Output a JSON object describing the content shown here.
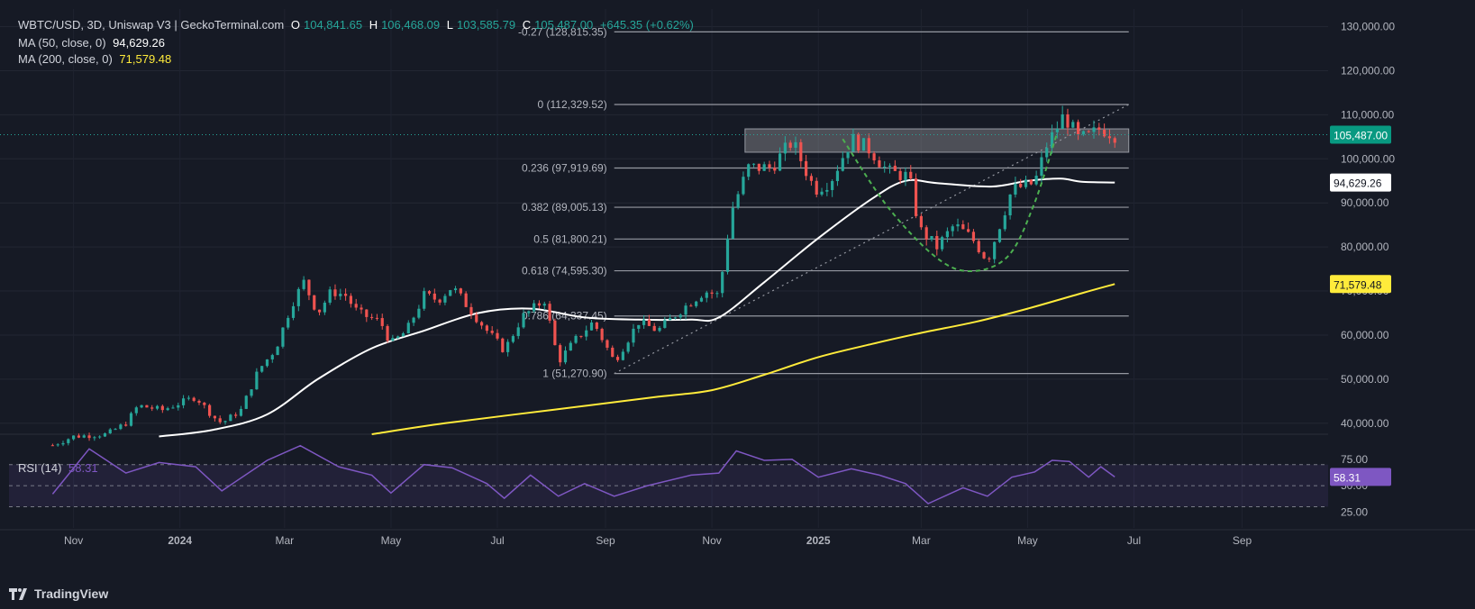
{
  "header": {
    "symbol": "WBTC/USD, 3D, Uniswap V3 | GeckoTerminal.com",
    "open_label": "O",
    "open": "104,841.65",
    "high_label": "H",
    "high": "106,468.09",
    "low_label": "L",
    "low": "103,585.79",
    "close_label": "C",
    "close": "105,487.00",
    "change": "+645.35 (+0.62%)",
    "ma50_label": "MA (50, close, 0)",
    "ma50_value": "94,629.26",
    "ma200_label": "MA (200, close, 0)",
    "ma200_value": "71,579.48",
    "rsi_label": "RSI (14)",
    "rsi_value": "58.31"
  },
  "footer": {
    "brand": "TradingView"
  },
  "colors": {
    "background": "#161a25",
    "up": "#26a69a",
    "down": "#ef5350",
    "ma50": "#ffffff",
    "ma200": "#ffeb3b",
    "rsi": "#7e57c2",
    "cup": "#4caf50"
  },
  "chart_data": {
    "type": "line",
    "y_axis": {
      "ticks": [
        "130,000.00",
        "120,000.00",
        "110,000.00",
        "100,000.00",
        "90,000.00",
        "80,000.00",
        "70,000.00",
        "60,000.00",
        "50,000.00",
        "40,000.00"
      ],
      "ylim": [
        37500,
        134000
      ]
    },
    "x_axis": {
      "ticks": [
        "Nov",
        "2024",
        "Mar",
        "May",
        "Jul",
        "Sep",
        "Nov",
        "2025",
        "Mar",
        "May",
        "Jul",
        "Sep"
      ]
    },
    "price_labels": {
      "last": "105,487.00",
      "ma50": "94,629.26",
      "ma200": "71,579.48",
      "rsi": "58.31"
    },
    "fibonacci": [
      {
        "label": "-0.27 (128,815.35)",
        "value": 128815.35
      },
      {
        "label": "0 (112,329.52)",
        "value": 112329.52
      },
      {
        "label": "0.236 (97,919.69)",
        "value": 97919.69
      },
      {
        "label": "0.382 (89,005.13)",
        "value": 89005.13
      },
      {
        "label": "0.5 (81,800.21)",
        "value": 81800.21
      },
      {
        "label": "0.618 (74,595.30)",
        "value": 74595.3
      },
      {
        "label": "0.786 (64,337.45)",
        "value": 64337.45
      },
      {
        "label": "1 (51,270.90)",
        "value": 51270.9
      }
    ],
    "resistance_zone": {
      "low": 101500,
      "high": 106800
    },
    "series": [
      {
        "name": "WBTC/USD",
        "points": [
          [
            "2023-10-20",
            35000
          ],
          [
            "2023-11-01",
            37000
          ],
          [
            "2023-11-20",
            37500
          ],
          [
            "2023-12-01",
            40000
          ],
          [
            "2023-12-08",
            44000
          ],
          [
            "2023-12-22",
            43000
          ],
          [
            "2024-01-10",
            46000
          ],
          [
            "2024-01-20",
            41500
          ],
          [
            "2024-01-25",
            40000
          ],
          [
            "2024-02-05",
            43000
          ],
          [
            "2024-02-15",
            52000
          ],
          [
            "2024-02-25",
            57000
          ],
          [
            "2024-03-05",
            67000
          ],
          [
            "2024-03-12",
            72000
          ],
          [
            "2024-03-20",
            65000
          ],
          [
            "2024-03-28",
            70000
          ],
          [
            "2024-04-05",
            69000
          ],
          [
            "2024-04-12",
            65000
          ],
          [
            "2024-04-25",
            63000
          ],
          [
            "2024-05-01",
            58000
          ],
          [
            "2024-05-10",
            61000
          ],
          [
            "2024-05-20",
            69000
          ],
          [
            "2024-05-28",
            68000
          ],
          [
            "2024-06-05",
            71000
          ],
          [
            "2024-06-15",
            66000
          ],
          [
            "2024-06-25",
            61000
          ],
          [
            "2024-07-05",
            56500
          ],
          [
            "2024-07-15",
            64000
          ],
          [
            "2024-07-28",
            68000
          ],
          [
            "2024-08-05",
            54000
          ],
          [
            "2024-08-15",
            59000
          ],
          [
            "2024-08-25",
            63000
          ],
          [
            "2024-09-06",
            54000
          ],
          [
            "2024-09-20",
            63000
          ],
          [
            "2024-10-01",
            61000
          ],
          [
            "2024-10-15",
            66000
          ],
          [
            "2024-10-28",
            70000
          ],
          [
            "2024-11-05",
            69000
          ],
          [
            "2024-11-12",
            88000
          ],
          [
            "2024-11-22",
            98000
          ],
          [
            "2024-12-05",
            98000
          ],
          [
            "2024-12-17",
            104000
          ],
          [
            "2024-12-30",
            93000
          ],
          [
            "2025-01-08",
            95000
          ],
          [
            "2025-01-20",
            104500
          ],
          [
            "2025-01-31",
            102000
          ],
          [
            "2025-02-10",
            97000
          ],
          [
            "2025-02-22",
            96000
          ],
          [
            "2025-02-28",
            84000
          ],
          [
            "2025-03-10",
            80000
          ],
          [
            "2025-03-20",
            85000
          ],
          [
            "2025-03-30",
            82000
          ],
          [
            "2025-04-08",
            77000
          ],
          [
            "2025-04-22",
            93000
          ],
          [
            "2025-05-05",
            94500
          ],
          [
            "2025-05-12",
            103000
          ],
          [
            "2025-05-22",
            110000
          ],
          [
            "2025-05-30",
            104500
          ],
          [
            "2025-06-05",
            105000
          ],
          [
            "2025-06-12",
            107000
          ],
          [
            "2025-06-20",
            105487
          ]
        ]
      },
      {
        "name": "MA (50, close, 0)",
        "points": [
          [
            "2023-12-20",
            37000
          ],
          [
            "2024-01-20",
            38500
          ],
          [
            "2024-02-20",
            42000
          ],
          [
            "2024-03-20",
            50000
          ],
          [
            "2024-04-20",
            57000
          ],
          [
            "2024-05-20",
            61000
          ],
          [
            "2024-06-20",
            65000
          ],
          [
            "2024-07-20",
            66000
          ],
          [
            "2024-08-20",
            64000
          ],
          [
            "2024-09-20",
            63500
          ],
          [
            "2024-10-20",
            63500
          ],
          [
            "2024-11-05",
            64000
          ],
          [
            "2024-12-01",
            72000
          ],
          [
            "2025-01-01",
            82000
          ],
          [
            "2025-02-01",
            91000
          ],
          [
            "2025-02-20",
            95000
          ],
          [
            "2025-03-10",
            94500
          ],
          [
            "2025-04-10",
            93700
          ],
          [
            "2025-05-01",
            95000
          ],
          [
            "2025-05-20",
            95500
          ],
          [
            "2025-06-01",
            94800
          ],
          [
            "2025-06-20",
            94629.26
          ]
        ]
      },
      {
        "name": "MA (200, close, 0)",
        "points": [
          [
            "2024-04-20",
            37500
          ],
          [
            "2024-06-01",
            40000
          ],
          [
            "2024-08-01",
            43000
          ],
          [
            "2024-10-01",
            46000
          ],
          [
            "2024-11-01",
            47500
          ],
          [
            "2024-12-01",
            51000
          ],
          [
            "2025-01-01",
            55000
          ],
          [
            "2025-02-01",
            58000
          ],
          [
            "2025-03-01",
            60500
          ],
          [
            "2025-04-01",
            63000
          ],
          [
            "2025-05-01",
            66000
          ],
          [
            "2025-06-01",
            69500
          ],
          [
            "2025-06-20",
            71579.48
          ]
        ]
      },
      {
        "name": "RSI (14)",
        "ylim": [
          15,
          92
        ],
        "ticks": [
          "75.00",
          "50.00",
          "25.00"
        ],
        "band": [
          30,
          70
        ],
        "points": [
          [
            "2023-10-20",
            42
          ],
          [
            "2023-11-10",
            85
          ],
          [
            "2023-12-01",
            62
          ],
          [
            "2023-12-20",
            72
          ],
          [
            "2024-01-10",
            68
          ],
          [
            "2024-01-25",
            45
          ],
          [
            "2024-02-20",
            74
          ],
          [
            "2024-03-10",
            88
          ],
          [
            "2024-04-01",
            68
          ],
          [
            "2024-04-20",
            60
          ],
          [
            "2024-05-01",
            43
          ],
          [
            "2024-05-20",
            70
          ],
          [
            "2024-06-05",
            67
          ],
          [
            "2024-06-25",
            52
          ],
          [
            "2024-07-05",
            38
          ],
          [
            "2024-07-20",
            60
          ],
          [
            "2024-08-05",
            40
          ],
          [
            "2024-08-20",
            52
          ],
          [
            "2024-09-06",
            40
          ],
          [
            "2024-09-25",
            50
          ],
          [
            "2024-10-20",
            60
          ],
          [
            "2024-11-05",
            62
          ],
          [
            "2024-11-15",
            83
          ],
          [
            "2024-12-01",
            74
          ],
          [
            "2024-12-17",
            75
          ],
          [
            "2025-01-01",
            58
          ],
          [
            "2025-01-20",
            66
          ],
          [
            "2025-02-05",
            60
          ],
          [
            "2025-02-20",
            52
          ],
          [
            "2025-03-05",
            33
          ],
          [
            "2025-03-25",
            48
          ],
          [
            "2025-04-08",
            40
          ],
          [
            "2025-04-22",
            58
          ],
          [
            "2025-05-05",
            63
          ],
          [
            "2025-05-15",
            74
          ],
          [
            "2025-05-25",
            73
          ],
          [
            "2025-06-05",
            58
          ],
          [
            "2025-06-12",
            68
          ],
          [
            "2025-06-20",
            58.31
          ]
        ]
      }
    ],
    "cup_pattern": [
      [
        "2025-01-15",
        104500
      ],
      [
        "2025-02-10",
        89000
      ],
      [
        "2025-03-10",
        77500
      ],
      [
        "2025-03-30",
        74500
      ],
      [
        "2025-04-20",
        78000
      ],
      [
        "2025-05-05",
        90000
      ],
      [
        "2025-05-18",
        106000
      ]
    ],
    "trendline": [
      [
        "2024-09-06",
        51270.9
      ],
      [
        "2025-06-28",
        112329.52
      ]
    ],
    "grid": true,
    "legend": "top-left"
  }
}
